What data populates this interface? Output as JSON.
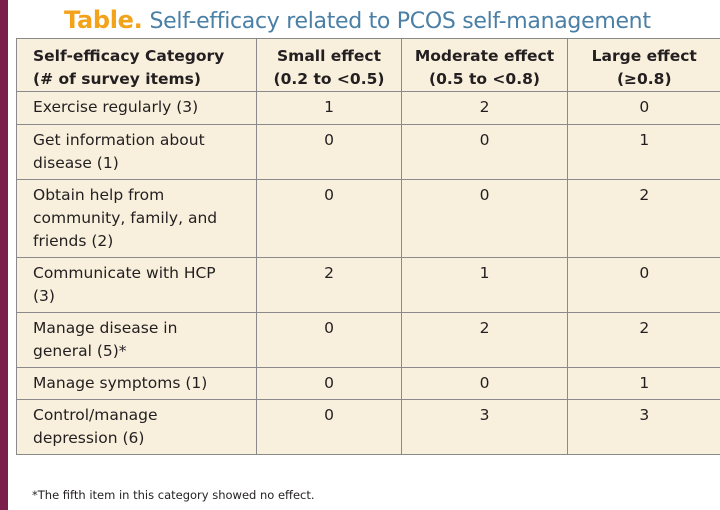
{
  "title": {
    "label": "Table.",
    "text": "Self-efficacy related to PCOS self-management"
  },
  "table": {
    "headers": [
      [
        "Self-efficacy Category",
        "(# of survey items)"
      ],
      [
        "Small effect",
        "(0.2 to <0.5)"
      ],
      [
        "Moderate effect",
        "(0.5 to <0.8)"
      ],
      [
        "Large effect",
        "(≥0.8)"
      ]
    ],
    "rows": [
      {
        "category": [
          "Exercise regularly (3)"
        ],
        "small": "1",
        "moderate": "2",
        "large": "0"
      },
      {
        "category": [
          "Get information about",
          "disease (1)"
        ],
        "small": "0",
        "moderate": "0",
        "large": "1"
      },
      {
        "category": [
          "Obtain help from",
          "community, family, and",
          "friends (2)"
        ],
        "small": "0",
        "moderate": "0",
        "large": "2"
      },
      {
        "category": [
          "Communicate with HCP",
          "(3)"
        ],
        "small": "2",
        "moderate": "1",
        "large": "0"
      },
      {
        "category": [
          "Manage disease in",
          "general (5)*"
        ],
        "small": "0",
        "moderate": "2",
        "large": "2"
      },
      {
        "category": [
          "Manage symptoms (1)"
        ],
        "small": "0",
        "moderate": "0",
        "large": "1"
      },
      {
        "category": [
          "Control/manage",
          "depression (6)"
        ],
        "small": "0",
        "moderate": "3",
        "large": "3"
      }
    ]
  },
  "footnote": "*The fifth item in this category showed no effect.",
  "colors": {
    "accent_bar": "#7b1e4a",
    "title_label": "#f2a31a",
    "title_text": "#4a7fa6",
    "table_background": "#f8f0dd"
  }
}
